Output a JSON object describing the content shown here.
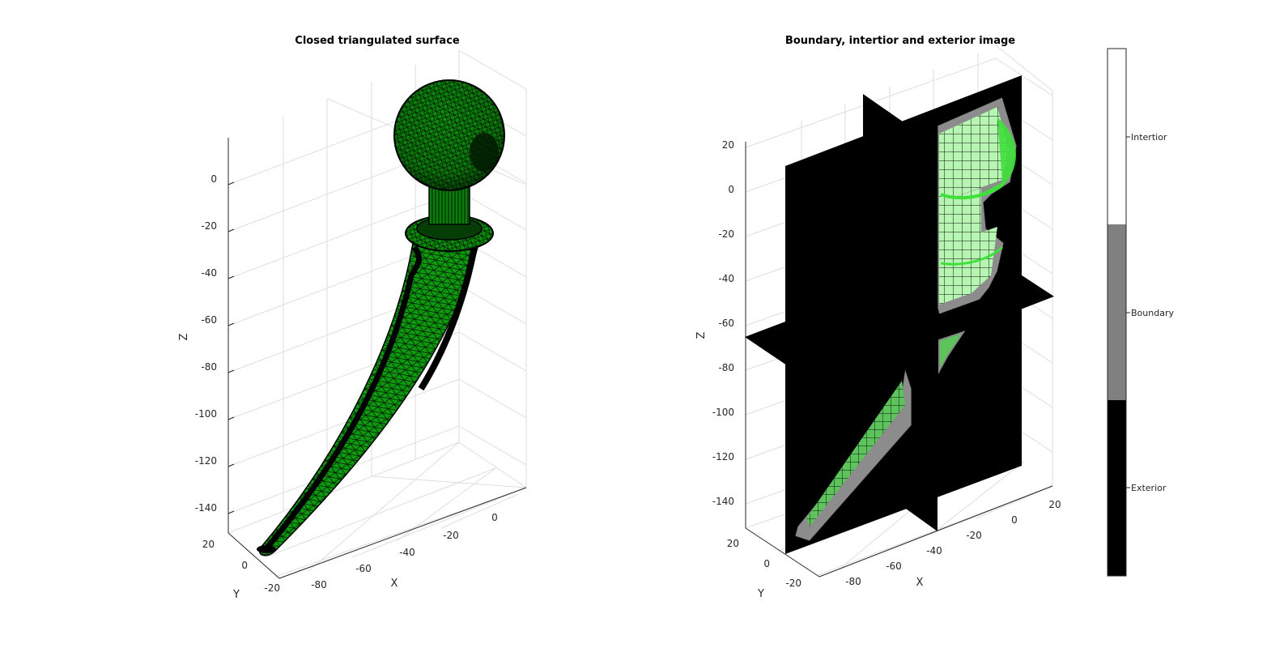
{
  "figure": {
    "left_title": "Closed triangulated surface",
    "right_title": "Boundary, intertior and exterior image"
  },
  "colors": {
    "surface": "#0a8a0a",
    "surface_dark": "#053d05",
    "interior_voxel": "#b6f5b2",
    "boundary_voxel": "#8c8c8c",
    "edge": "#000000",
    "slice": "#000000"
  },
  "chart_data": [
    {
      "type": "3d-surface",
      "title": "Closed triangulated surface",
      "xlabel": "X",
      "ylabel": "Y",
      "zlabel": "Z",
      "x_ticks": [
        "-80",
        "-60",
        "-40",
        "-20",
        "0"
      ],
      "y_ticks": [
        "-20",
        "0",
        "20"
      ],
      "z_ticks": [
        "0",
        "-20",
        "-40",
        "-60",
        "-80",
        "-100",
        "-120",
        "-140"
      ],
      "grid": true,
      "object": "hip implant stem with spherical head"
    },
    {
      "type": "3d-voxel-slices",
      "title": "Boundary, intertior and exterior image",
      "xlabel": "X",
      "ylabel": "Y",
      "zlabel": "Z",
      "x_ticks": [
        "-80",
        "-60",
        "-40",
        "-20",
        "0",
        "20"
      ],
      "y_ticks": [
        "-20",
        "0",
        "20"
      ],
      "z_ticks": [
        "20",
        "0",
        "-20",
        "-40",
        "-60",
        "-80",
        "-100",
        "-120",
        "-140"
      ],
      "grid": true,
      "colorbar": {
        "categories": [
          "Exterior",
          "Boundary",
          "Intertior"
        ],
        "colors": [
          "#000000",
          "#808080",
          "#ffffff"
        ]
      }
    }
  ]
}
